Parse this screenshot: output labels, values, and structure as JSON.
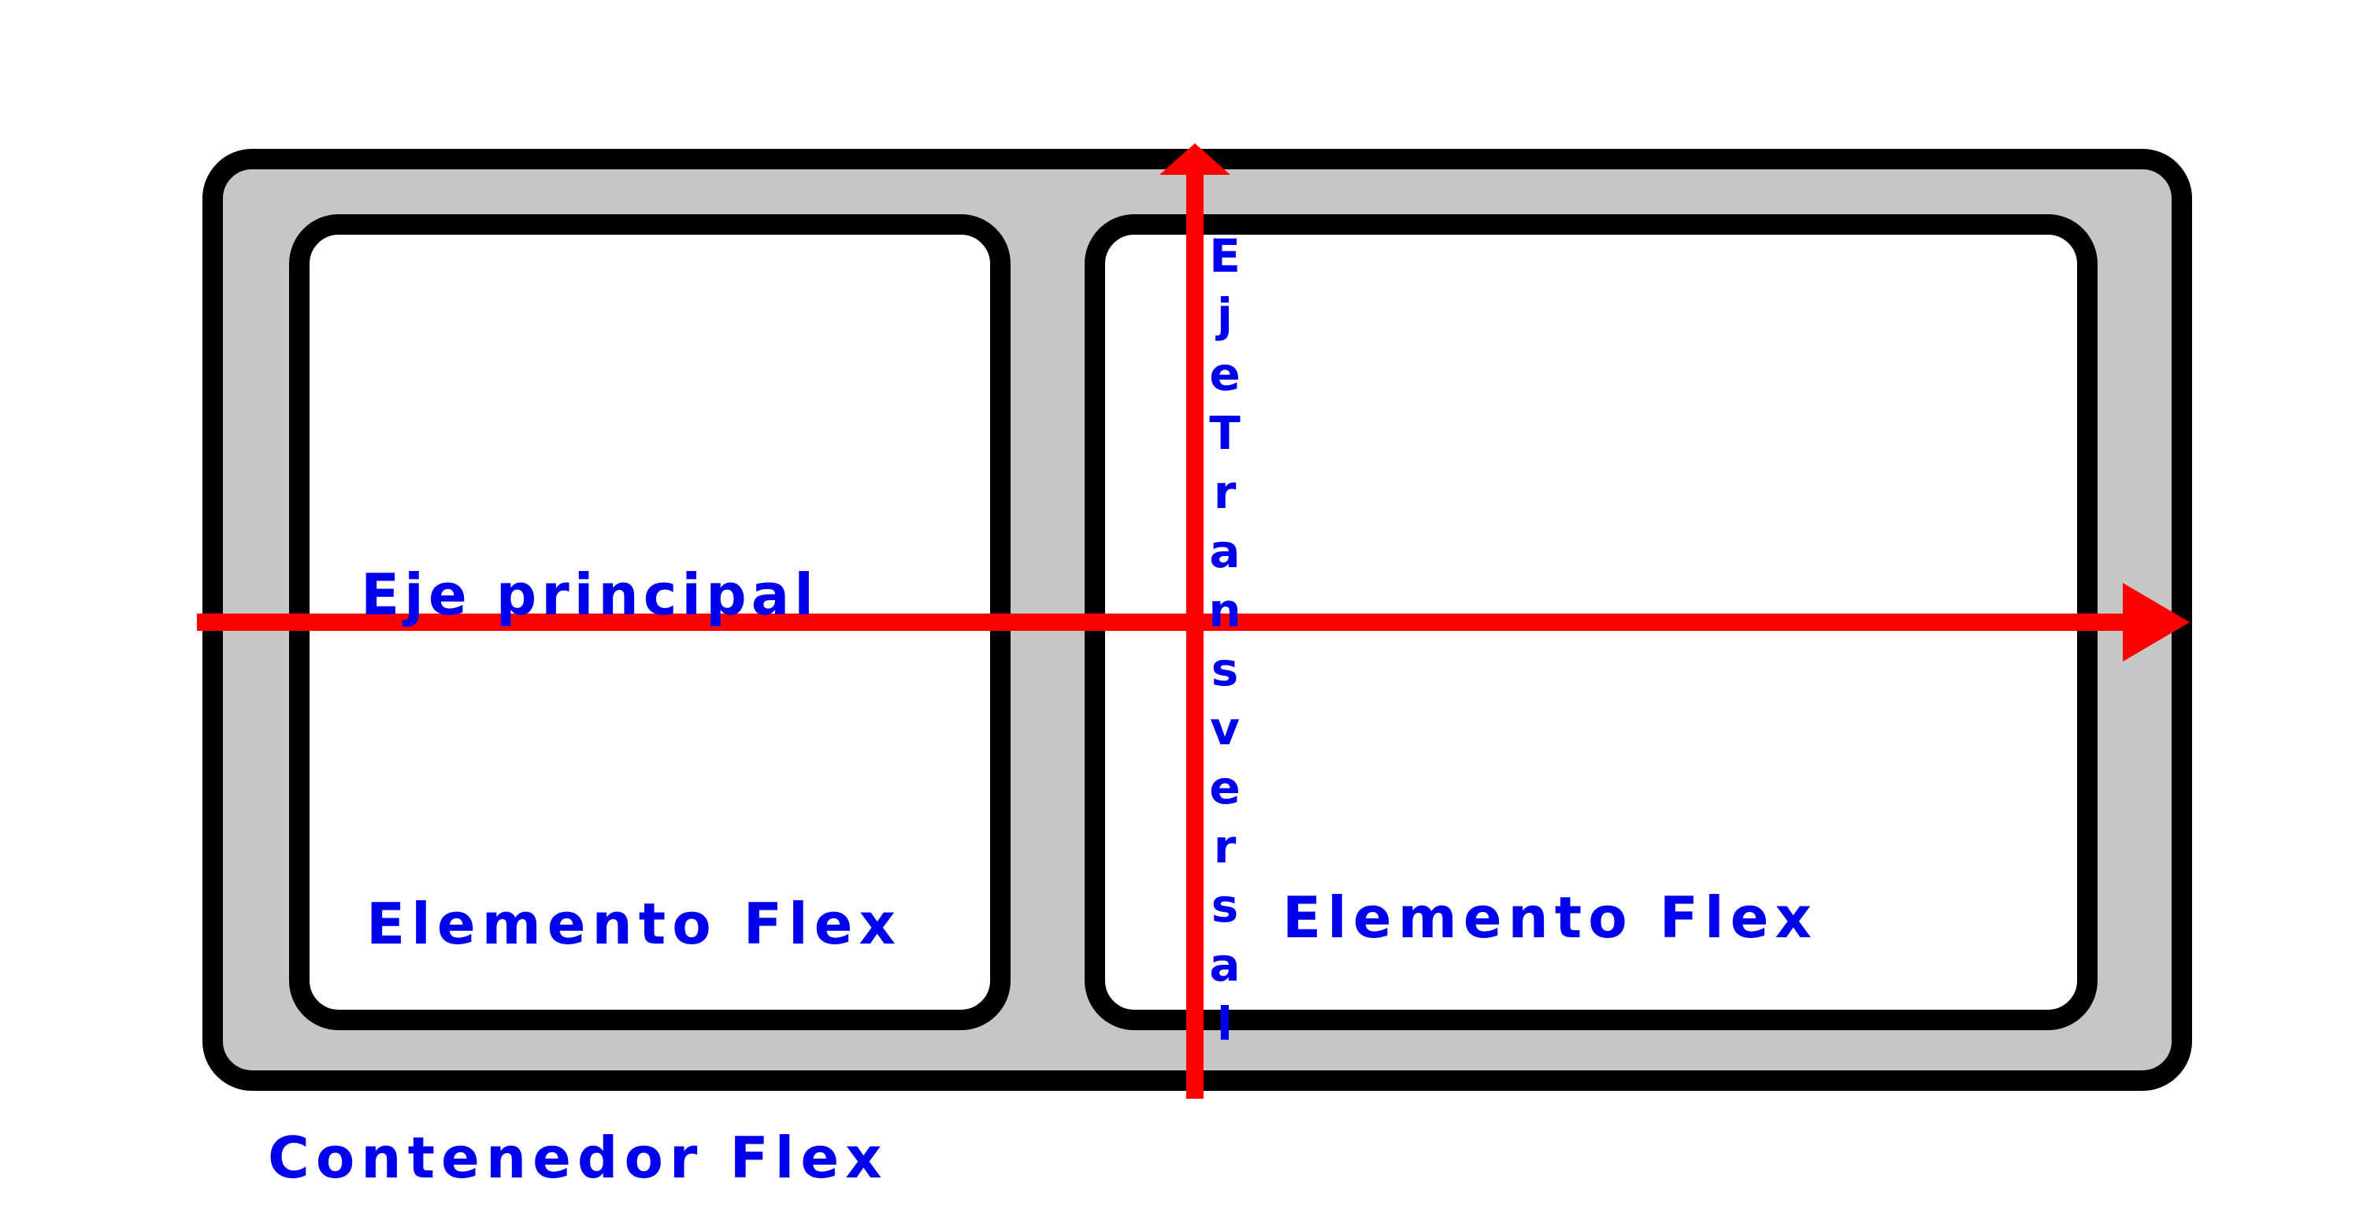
{
  "diagram": {
    "container_label": "Contenedor Flex",
    "item_1_label": "Elemento Flex",
    "item_2_label": "Elemento Flex",
    "main_axis_label": "Eje principal",
    "cross_axis_label": "Eje Transversal"
  },
  "colors": {
    "container_fill": "#c6c6c6",
    "item_fill": "#ffffff",
    "border": "#000000",
    "axis": "#ff0000",
    "label": "#0000ee"
  }
}
